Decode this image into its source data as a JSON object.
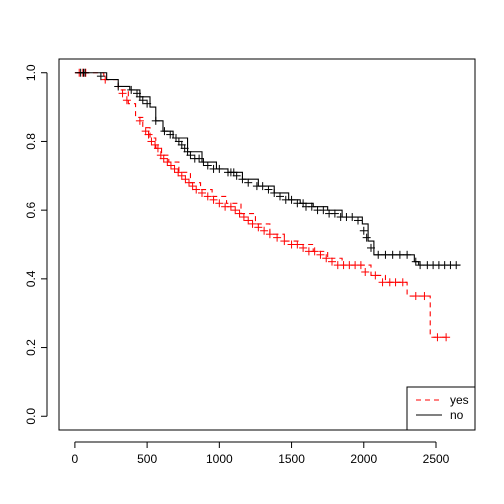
{
  "chart_data": {
    "type": "line",
    "title": "",
    "xlabel": "",
    "ylabel": "",
    "xlim": [
      -110,
      2770
    ],
    "ylim": [
      -0.04,
      1.04
    ],
    "x_ticks": [
      0,
      500,
      1000,
      1500,
      2000,
      2500
    ],
    "y_ticks": [
      0.0,
      0.2,
      0.4,
      0.6,
      0.8,
      1.0
    ],
    "x_tick_labels": [
      "0",
      "500",
      "1000",
      "1500",
      "2000",
      "2500"
    ],
    "y_tick_labels": [
      "0.0",
      "0.2",
      "0.4",
      "0.6",
      "0.8",
      "1.0"
    ],
    "grid": false,
    "legend_position": "bottom-right",
    "series": [
      {
        "name": "yes",
        "color": "#ff0000",
        "line_style": "dashed",
        "curve": [
          [
            0,
            1.0
          ],
          [
            110,
            1.0
          ],
          [
            200,
            0.98
          ],
          [
            300,
            0.95
          ],
          [
            370,
            0.91
          ],
          [
            420,
            0.87
          ],
          [
            470,
            0.84
          ],
          [
            520,
            0.81
          ],
          [
            560,
            0.78
          ],
          [
            600,
            0.76
          ],
          [
            650,
            0.74
          ],
          [
            720,
            0.71
          ],
          [
            800,
            0.68
          ],
          [
            870,
            0.66
          ],
          [
            950,
            0.64
          ],
          [
            1050,
            0.62
          ],
          [
            1150,
            0.59
          ],
          [
            1250,
            0.56
          ],
          [
            1350,
            0.53
          ],
          [
            1450,
            0.51
          ],
          [
            1550,
            0.5
          ],
          [
            1650,
            0.48
          ],
          [
            1750,
            0.46
          ],
          [
            1850,
            0.44
          ],
          [
            1950,
            0.44
          ],
          [
            2050,
            0.41
          ],
          [
            2150,
            0.39
          ],
          [
            2250,
            0.39
          ],
          [
            2300,
            0.35
          ],
          [
            2460,
            0.35
          ],
          [
            2460,
            0.23
          ],
          [
            2570,
            0.23
          ]
        ],
        "censored": [
          [
            30,
            1.0
          ],
          [
            55,
            1.0
          ],
          [
            75,
            1.0
          ],
          [
            210,
            0.98
          ],
          [
            330,
            0.94
          ],
          [
            360,
            0.92
          ],
          [
            450,
            0.86
          ],
          [
            490,
            0.83
          ],
          [
            510,
            0.82
          ],
          [
            530,
            0.8
          ],
          [
            555,
            0.79
          ],
          [
            575,
            0.78
          ],
          [
            595,
            0.76
          ],
          [
            615,
            0.75
          ],
          [
            640,
            0.74
          ],
          [
            665,
            0.73
          ],
          [
            690,
            0.72
          ],
          [
            715,
            0.71
          ],
          [
            740,
            0.7
          ],
          [
            765,
            0.69
          ],
          [
            790,
            0.68
          ],
          [
            815,
            0.67
          ],
          [
            840,
            0.66
          ],
          [
            880,
            0.65
          ],
          [
            920,
            0.64
          ],
          [
            960,
            0.63
          ],
          [
            1000,
            0.62
          ],
          [
            1040,
            0.61
          ],
          [
            1080,
            0.61
          ],
          [
            1110,
            0.6
          ],
          [
            1140,
            0.59
          ],
          [
            1170,
            0.58
          ],
          [
            1200,
            0.57
          ],
          [
            1230,
            0.56
          ],
          [
            1270,
            0.55
          ],
          [
            1310,
            0.54
          ],
          [
            1350,
            0.53
          ],
          [
            1400,
            0.52
          ],
          [
            1450,
            0.51
          ],
          [
            1500,
            0.5
          ],
          [
            1540,
            0.5
          ],
          [
            1580,
            0.49
          ],
          [
            1620,
            0.48
          ],
          [
            1660,
            0.48
          ],
          [
            1700,
            0.47
          ],
          [
            1740,
            0.46
          ],
          [
            1780,
            0.45
          ],
          [
            1820,
            0.44
          ],
          [
            1860,
            0.44
          ],
          [
            1900,
            0.44
          ],
          [
            1940,
            0.44
          ],
          [
            1980,
            0.44
          ],
          [
            2010,
            0.42
          ],
          [
            2080,
            0.41
          ],
          [
            2130,
            0.39
          ],
          [
            2180,
            0.39
          ],
          [
            2220,
            0.39
          ],
          [
            2270,
            0.39
          ],
          [
            2360,
            0.35
          ],
          [
            2420,
            0.35
          ],
          [
            2510,
            0.23
          ],
          [
            2570,
            0.23
          ]
        ]
      },
      {
        "name": "no",
        "color": "#000000",
        "line_style": "solid",
        "curve": [
          [
            0,
            1.0
          ],
          [
            180,
            1.0
          ],
          [
            220,
            0.98
          ],
          [
            300,
            0.96
          ],
          [
            380,
            0.95
          ],
          [
            450,
            0.93
          ],
          [
            520,
            0.9
          ],
          [
            560,
            0.86
          ],
          [
            610,
            0.83
          ],
          [
            680,
            0.81
          ],
          [
            780,
            0.77
          ],
          [
            880,
            0.74
          ],
          [
            980,
            0.72
          ],
          [
            1060,
            0.71
          ],
          [
            1160,
            0.69
          ],
          [
            1270,
            0.67
          ],
          [
            1380,
            0.65
          ],
          [
            1480,
            0.63
          ],
          [
            1560,
            0.62
          ],
          [
            1650,
            0.61
          ],
          [
            1750,
            0.6
          ],
          [
            1850,
            0.58
          ],
          [
            1950,
            0.58
          ],
          [
            1990,
            0.56
          ],
          [
            2030,
            0.51
          ],
          [
            2070,
            0.47
          ],
          [
            2150,
            0.47
          ],
          [
            2250,
            0.47
          ],
          [
            2330,
            0.47
          ],
          [
            2350,
            0.45
          ],
          [
            2380,
            0.44
          ],
          [
            2670,
            0.44
          ]
        ],
        "censored": [
          [
            40,
            1.0
          ],
          [
            60,
            1.0
          ],
          [
            70,
            1.0
          ],
          [
            180,
            0.99
          ],
          [
            300,
            0.96
          ],
          [
            390,
            0.95
          ],
          [
            430,
            0.94
          ],
          [
            450,
            0.93
          ],
          [
            470,
            0.92
          ],
          [
            500,
            0.91
          ],
          [
            560,
            0.86
          ],
          [
            620,
            0.83
          ],
          [
            660,
            0.82
          ],
          [
            700,
            0.81
          ],
          [
            720,
            0.8
          ],
          [
            740,
            0.79
          ],
          [
            760,
            0.78
          ],
          [
            780,
            0.77
          ],
          [
            800,
            0.76
          ],
          [
            830,
            0.75
          ],
          [
            860,
            0.75
          ],
          [
            890,
            0.74
          ],
          [
            920,
            0.73
          ],
          [
            960,
            0.72
          ],
          [
            1000,
            0.72
          ],
          [
            1060,
            0.71
          ],
          [
            1080,
            0.71
          ],
          [
            1100,
            0.71
          ],
          [
            1120,
            0.7
          ],
          [
            1160,
            0.69
          ],
          [
            1200,
            0.68
          ],
          [
            1260,
            0.67
          ],
          [
            1300,
            0.67
          ],
          [
            1340,
            0.66
          ],
          [
            1380,
            0.65
          ],
          [
            1420,
            0.64
          ],
          [
            1460,
            0.63
          ],
          [
            1500,
            0.63
          ],
          [
            1540,
            0.62
          ],
          [
            1580,
            0.62
          ],
          [
            1600,
            0.61
          ],
          [
            1640,
            0.61
          ],
          [
            1680,
            0.6
          ],
          [
            1720,
            0.6
          ],
          [
            1760,
            0.59
          ],
          [
            1800,
            0.59
          ],
          [
            1840,
            0.58
          ],
          [
            1880,
            0.58
          ],
          [
            1920,
            0.58
          ],
          [
            1960,
            0.57
          ],
          [
            2000,
            0.54
          ],
          [
            2020,
            0.52
          ],
          [
            2050,
            0.49
          ],
          [
            2100,
            0.47
          ],
          [
            2150,
            0.47
          ],
          [
            2200,
            0.47
          ],
          [
            2250,
            0.47
          ],
          [
            2300,
            0.47
          ],
          [
            2360,
            0.45
          ],
          [
            2390,
            0.44
          ],
          [
            2440,
            0.44
          ],
          [
            2480,
            0.44
          ],
          [
            2520,
            0.44
          ],
          [
            2560,
            0.44
          ],
          [
            2600,
            0.44
          ],
          [
            2640,
            0.44
          ]
        ]
      }
    ]
  }
}
